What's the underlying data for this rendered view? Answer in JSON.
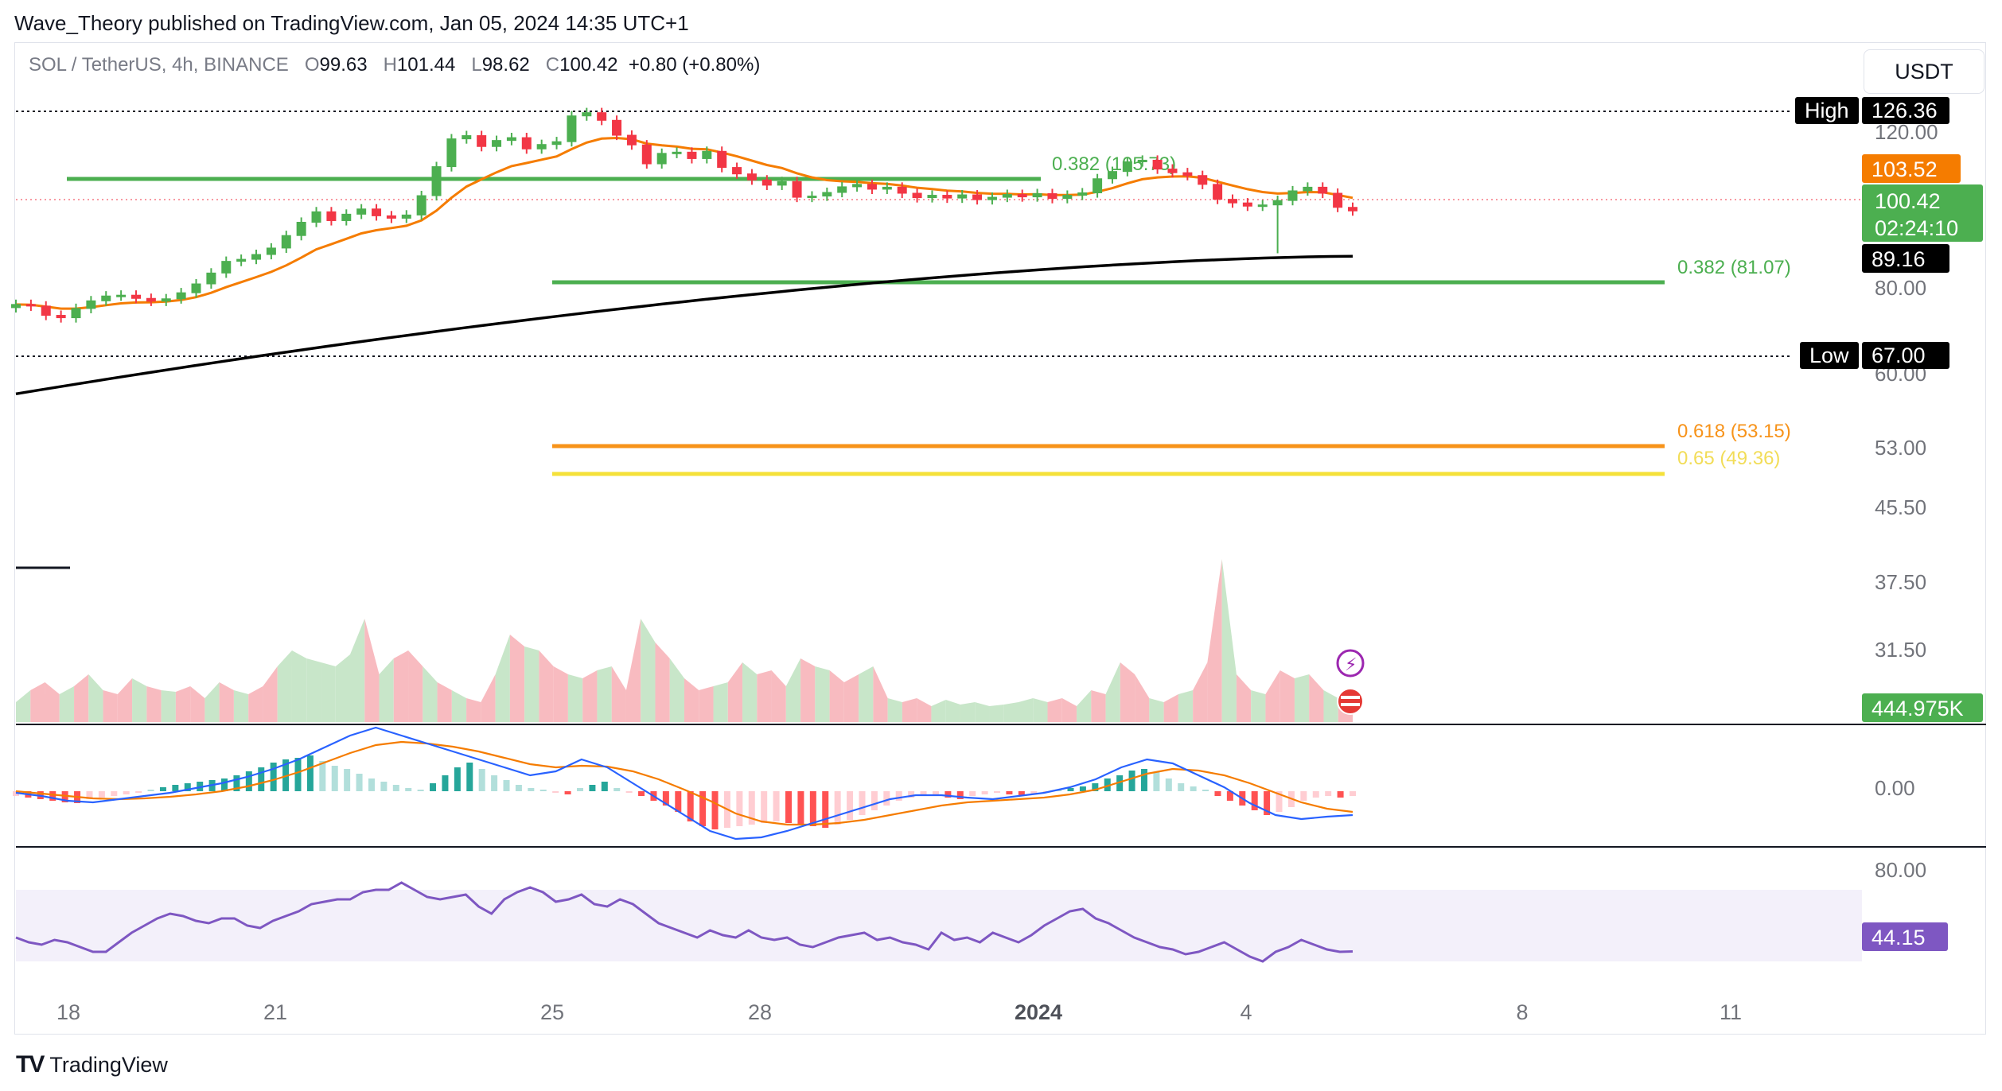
{
  "header": {
    "publisher_line": "Wave_Theory published on TradingView.com, Jan 05, 2024 14:35 UTC+1"
  },
  "legend": {
    "symbol": "SOL / TetherUS, 4h, BINANCE",
    "o_label": "O",
    "o_value": "99.63",
    "h_label": "H",
    "h_value": "101.44",
    "l_label": "L",
    "l_value": "98.62",
    "c_label": "C",
    "c_value": "100.42",
    "change": "+0.80 (+0.80%)"
  },
  "currency_button": "USDT",
  "footer": {
    "brand": "TradingView",
    "logo": "TV"
  },
  "colors": {
    "up": "#26a69a",
    "up_candle": "#4caf50",
    "down": "#f23645",
    "ema_orange": "#f57c00",
    "ema_black": "#000000",
    "fib_green": "#4caf50",
    "fib_orange": "#f7931a",
    "fib_yellow": "#f5e13a",
    "rsi": "#7e57c2",
    "rsi_band": "#f3f0fa"
  },
  "icons": [
    "lightning-icon",
    "us-flag-icon",
    "tradingview-logo-icon"
  ],
  "chart_data": {
    "type": "candlestick",
    "symbol": "SOL / TetherUS",
    "interval": "4h",
    "exchange": "BINANCE",
    "price_axis_ticks": [
      "120.00",
      "80.00",
      "60.00",
      "53.00",
      "45.50",
      "37.50",
      "31.50"
    ],
    "x_tick_labels": [
      "18",
      "21",
      "25",
      "28",
      "2024",
      "4",
      "8",
      "11"
    ],
    "markers": {
      "high": {
        "label": "High",
        "value": "126.36"
      },
      "low": {
        "label": "Low",
        "value": "67.00"
      },
      "ema_orange": "103.52",
      "last_price": "100.42",
      "countdown": "02:24:10",
      "ema_black": "89.16"
    },
    "fib_levels": [
      {
        "ratio": "0.382",
        "value": "105.73",
        "label": "0.382 (105.73)"
      },
      {
        "ratio": "0.382",
        "value": "81.07",
        "label": "0.382 (81.07)"
      },
      {
        "ratio": "0.618",
        "value": "53.15",
        "label": "0.618 (53.15)"
      },
      {
        "ratio": "0.65",
        "value": "49.36",
        "label": "0.65 (49.36)"
      }
    ],
    "close_series": [
      77.2,
      76.8,
      74.5,
      73.9,
      76.2,
      78.1,
      79.3,
      79.5,
      78.7,
      78.0,
      78.6,
      80.1,
      82.3,
      85.0,
      87.9,
      88.4,
      89.6,
      91.2,
      94.3,
      97.6,
      100.2,
      98.0,
      99.6,
      100.9,
      99.2,
      98.6,
      99.4,
      104.2,
      111.4,
      118.3,
      119.1,
      116.4,
      117.9,
      118.6,
      115.8,
      116.9,
      117.6,
      124.0,
      124.8,
      122.9,
      119.2,
      116.8,
      112.1,
      114.7,
      115.0,
      113.4,
      115.2,
      111.2,
      109.6,
      108.1,
      106.8,
      107.7,
      103.8,
      104.1,
      105.0,
      106.4,
      107.0,
      105.8,
      106.3,
      104.8,
      103.7,
      104.3,
      103.6,
      104.4,
      103.2,
      103.8,
      104.5,
      103.9,
      104.7,
      103.5,
      104.3,
      104.9,
      108.4,
      110.2,
      112.6,
      113.0,
      110.8,
      109.9,
      109.2,
      107.0,
      103.3,
      102.4,
      101.6,
      101.9,
      103.0,
      105.4,
      106.3,
      104.8,
      101.3,
      100.42
    ],
    "volume": {
      "label": "444.975K"
    },
    "macd": {
      "zero_label": "0.00"
    },
    "rsi": {
      "band_label": "80.00",
      "value": "44.15",
      "series": [
        50,
        48,
        47,
        49,
        48,
        46,
        44,
        44,
        48,
        52,
        55,
        58,
        60,
        59,
        57,
        56,
        58,
        58,
        55,
        54,
        57,
        59,
        61,
        64,
        65,
        66,
        66,
        69,
        70,
        70,
        73,
        70,
        67,
        66,
        67,
        68,
        63,
        60,
        66,
        69,
        71,
        69,
        65,
        66,
        68,
        64,
        63,
        66,
        64,
        60,
        56,
        54,
        52,
        50,
        53,
        51,
        50,
        53,
        50,
        49,
        50,
        47,
        46,
        48,
        50,
        51,
        52,
        49,
        50,
        48,
        47,
        45,
        52,
        49,
        50,
        48,
        52,
        50,
        48,
        51,
        55,
        58,
        61,
        62,
        58,
        56,
        53,
        50,
        48,
        46,
        45,
        43,
        44,
        46,
        48,
        45,
        42,
        40,
        44,
        46,
        49,
        47,
        45,
        44,
        44.15
      ]
    }
  }
}
